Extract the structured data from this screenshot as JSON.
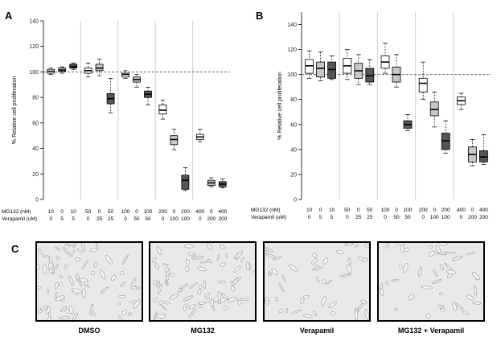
{
  "panels": {
    "a": "A",
    "b": "B",
    "c": "C"
  },
  "colors": {
    "white_box": "#ffffff",
    "light_box": "#c8c8c8",
    "dark_box": "#555555",
    "divider": "#cfcfcf",
    "reference_line": "#555555",
    "micrograph_bg": "#e9e9e9",
    "cells": "#9a9a9a"
  },
  "chart_data": [
    {
      "type": "box",
      "panel": "A",
      "ylabel": "% Relative cell proliferation",
      "ylim": [
        0,
        140
      ],
      "yticks": [
        0,
        20,
        40,
        60,
        80,
        100,
        120,
        140
      ],
      "reference_line": 100,
      "row_labels": [
        "MG132 (nM)",
        "Verapamil (uM)"
      ],
      "groups": [
        {
          "mg132": [
            "10",
            "0",
            "10"
          ],
          "verapamil": [
            "0",
            "5",
            "5"
          ],
          "boxes": [
            {
              "fill": "white",
              "whisker_low": 98,
              "q1": 99,
              "median": 100.5,
              "q3": 102,
              "whisker_high": 103
            },
            {
              "fill": "light",
              "whisker_low": 99,
              "q1": 100.5,
              "median": 101.5,
              "q3": 103,
              "whisker_high": 104
            },
            {
              "fill": "dark",
              "whisker_low": 102,
              "q1": 103,
              "median": 104,
              "q3": 106,
              "whisker_high": 107
            }
          ]
        },
        {
          "mg132": [
            "50",
            "0",
            "50"
          ],
          "verapamil": [
            "0",
            "25",
            "25"
          ],
          "boxes": [
            {
              "fill": "white",
              "whisker_low": 96,
              "q1": 99,
              "median": 101,
              "q3": 103,
              "whisker_high": 107
            },
            {
              "fill": "light",
              "whisker_low": 97,
              "q1": 101,
              "median": 103,
              "q3": 106,
              "whisker_high": 110
            },
            {
              "fill": "dark",
              "whisker_low": 68,
              "q1": 75,
              "median": 79,
              "q3": 83,
              "whisker_high": 95
            }
          ]
        },
        {
          "mg132": [
            "100",
            "0",
            "100"
          ],
          "verapamil": [
            "0",
            "50",
            "50"
          ],
          "boxes": [
            {
              "fill": "white",
              "whisker_low": 95,
              "q1": 96,
              "median": 98,
              "q3": 99,
              "whisker_high": 101
            },
            {
              "fill": "light",
              "whisker_low": 88,
              "q1": 92,
              "median": 94,
              "q3": 96,
              "whisker_high": 98
            },
            {
              "fill": "dark",
              "whisker_low": 74,
              "q1": 80,
              "median": 82.5,
              "q3": 85,
              "whisker_high": 88
            }
          ]
        },
        {
          "mg132": [
            "200",
            "0",
            "200"
          ],
          "verapamil": [
            "0",
            "100",
            "100"
          ],
          "boxes": [
            {
              "fill": "white",
              "whisker_low": 63,
              "q1": 67,
              "median": 70,
              "q3": 74,
              "whisker_high": 78
            },
            {
              "fill": "light",
              "whisker_low": 39,
              "q1": 43,
              "median": 47,
              "q3": 50,
              "whisker_high": 55
            },
            {
              "fill": "dark",
              "whisker_low": 7,
              "q1": 8,
              "median": 15,
              "q3": 19,
              "whisker_high": 25
            }
          ]
        },
        {
          "mg132": [
            "400",
            "0",
            "400"
          ],
          "verapamil": [
            "0",
            "200",
            "200"
          ],
          "boxes": [
            {
              "fill": "white",
              "whisker_low": 45,
              "q1": 47,
              "median": 49,
              "q3": 51,
              "whisker_high": 55
            },
            {
              "fill": "light",
              "whisker_low": 10,
              "q1": 11,
              "median": 13,
              "q3": 15,
              "whisker_high": 17
            },
            {
              "fill": "dark",
              "whisker_low": 9,
              "q1": 10,
              "median": 12,
              "q3": 14,
              "whisker_high": 16
            }
          ]
        }
      ]
    },
    {
      "type": "box",
      "panel": "B",
      "ylabel": "% Relative cell proliferation",
      "ylim": [
        0,
        150
      ],
      "yticks": [
        0,
        20,
        40,
        60,
        80,
        100,
        120,
        140
      ],
      "reference_line": 100,
      "row_labels": [
        "MG132 (nM)",
        "Verapamil (uM)"
      ],
      "groups": [
        {
          "mg132": [
            "10",
            "0",
            "10"
          ],
          "verapamil": [
            "0",
            "5",
            "5"
          ],
          "boxes": [
            {
              "fill": "white",
              "whisker_low": 97,
              "q1": 101,
              "median": 107,
              "q3": 112,
              "whisker_high": 119
            },
            {
              "fill": "light",
              "whisker_low": 95,
              "q1": 98,
              "median": 105,
              "q3": 110,
              "whisker_high": 118
            },
            {
              "fill": "dark",
              "whisker_low": 96,
              "q1": 97,
              "median": 104,
              "q3": 110,
              "whisker_high": 115
            }
          ]
        },
        {
          "mg132": [
            "50",
            "0",
            "50"
          ],
          "verapamil": [
            "0",
            "25",
            "25"
          ],
          "boxes": [
            {
              "fill": "white",
              "whisker_low": 96,
              "q1": 101,
              "median": 107,
              "q3": 113,
              "whisker_high": 120
            },
            {
              "fill": "light",
              "whisker_low": 92,
              "q1": 97,
              "median": 103,
              "q3": 109,
              "whisker_high": 116
            },
            {
              "fill": "dark",
              "whisker_low": 92,
              "q1": 94,
              "median": 99,
              "q3": 105,
              "whisker_high": 112
            }
          ]
        },
        {
          "mg132": [
            "100",
            "0",
            "100"
          ],
          "verapamil": [
            "0",
            "50",
            "50"
          ],
          "boxes": [
            {
              "fill": "white",
              "whisker_low": 101,
              "q1": 105,
              "median": 110,
              "q3": 115,
              "whisker_high": 125
            },
            {
              "fill": "light",
              "whisker_low": 90,
              "q1": 94,
              "median": 100,
              "q3": 106,
              "whisker_high": 116
            },
            {
              "fill": "dark",
              "whisker_low": 55,
              "q1": 57,
              "median": 60,
              "q3": 63,
              "whisker_high": 68
            }
          ]
        },
        {
          "mg132": [
            "200",
            "0",
            "200"
          ],
          "verapamil": [
            "0",
            "100",
            "100"
          ],
          "boxes": [
            {
              "fill": "white",
              "whisker_low": 80,
              "q1": 86,
              "median": 93,
              "q3": 97,
              "whisker_high": 110
            },
            {
              "fill": "light",
              "whisker_low": 58,
              "q1": 67,
              "median": 72,
              "q3": 78,
              "whisker_high": 86
            },
            {
              "fill": "dark",
              "whisker_low": 37,
              "q1": 40,
              "median": 47,
              "q3": 53,
              "whisker_high": 63
            }
          ]
        },
        {
          "mg132": [
            "400",
            "0",
            "400"
          ],
          "verapamil": [
            "0",
            "200",
            "200"
          ],
          "boxes": [
            {
              "fill": "white",
              "whisker_low": 72,
              "q1": 76,
              "median": 79,
              "q3": 82,
              "whisker_high": 85
            },
            {
              "fill": "light",
              "whisker_low": 27,
              "q1": 30,
              "median": 36,
              "q3": 42,
              "whisker_high": 48
            },
            {
              "fill": "dark",
              "whisker_low": 28,
              "q1": 30,
              "median": 34,
              "q3": 39,
              "whisker_high": 52
            }
          ]
        }
      ]
    }
  ],
  "micrographs": [
    {
      "label": "DMSO"
    },
    {
      "label": "MG132"
    },
    {
      "label": "Verapamil"
    },
    {
      "label": "MG132 + Verapamil"
    }
  ]
}
